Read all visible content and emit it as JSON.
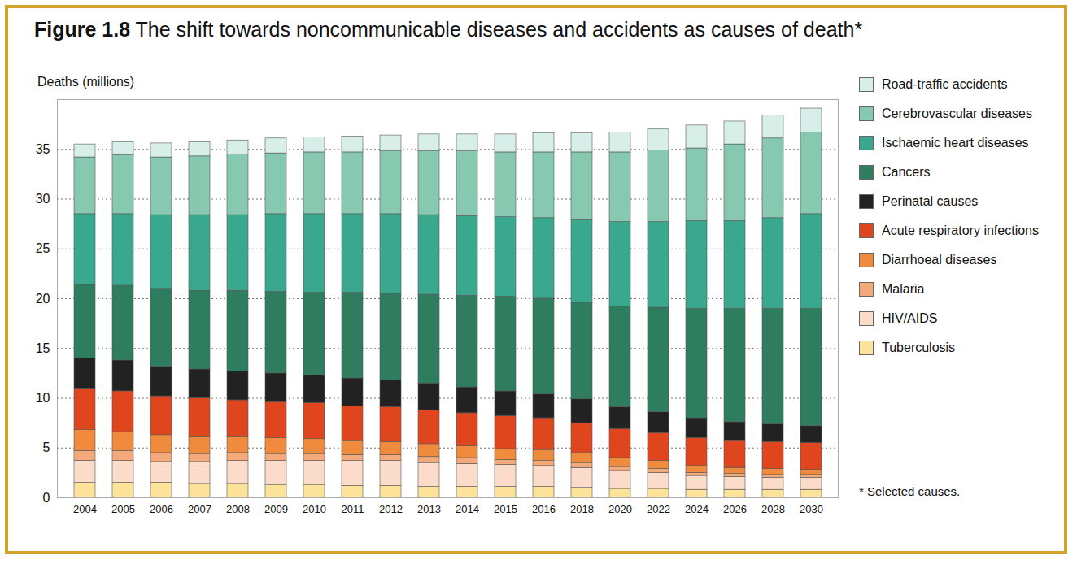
{
  "chart_data": {
    "type": "bar",
    "stacked": true,
    "grid": true,
    "legend": "right",
    "title": "Figure 1.8 The shift towards noncommunicable diseases and accidents as causes of death*",
    "y_label": "Deaths (millions)",
    "caption": "* Selected causes.",
    "categories": [
      "2004",
      "2005",
      "2006",
      "2007",
      "2008",
      "2009",
      "2010",
      "2011",
      "2012",
      "2013",
      "2014",
      "2015",
      "2016",
      "2018",
      "2020",
      "2022",
      "2024",
      "2026",
      "2028",
      "2030"
    ],
    "ylim": [
      0,
      40
    ],
    "yticks": [
      0,
      5,
      10,
      15,
      20,
      25,
      30,
      35
    ],
    "series": [
      {
        "name": "Tuberculosis",
        "color": "#fde39a",
        "values": [
          1.5,
          1.5,
          1.5,
          1.4,
          1.4,
          1.3,
          1.3,
          1.2,
          1.2,
          1.1,
          1.1,
          1.1,
          1.1,
          1.0,
          0.9,
          0.9,
          0.8,
          0.8,
          0.8,
          0.8
        ]
      },
      {
        "name": "HIV/AIDS",
        "color": "#fbdccb",
        "values": [
          2.2,
          2.2,
          2.1,
          2.2,
          2.3,
          2.4,
          2.4,
          2.5,
          2.5,
          2.4,
          2.3,
          2.2,
          2.1,
          2.0,
          1.8,
          1.6,
          1.4,
          1.3,
          1.2,
          1.2
        ]
      },
      {
        "name": "Malaria",
        "color": "#f4a97a",
        "values": [
          1.0,
          1.0,
          0.9,
          0.8,
          0.8,
          0.7,
          0.7,
          0.6,
          0.6,
          0.6,
          0.6,
          0.5,
          0.5,
          0.5,
          0.4,
          0.4,
          0.3,
          0.3,
          0.3,
          0.3
        ]
      },
      {
        "name": "Diarrhoeal diseases",
        "color": "#f08a3c",
        "values": [
          2.1,
          1.9,
          1.8,
          1.7,
          1.6,
          1.6,
          1.5,
          1.4,
          1.3,
          1.3,
          1.2,
          1.1,
          1.1,
          1.0,
          0.9,
          0.8,
          0.7,
          0.6,
          0.6,
          0.5
        ]
      },
      {
        "name": "Acute respiratory infections",
        "color": "#e0461e",
        "values": [
          4.1,
          4.1,
          3.9,
          3.9,
          3.7,
          3.6,
          3.6,
          3.5,
          3.5,
          3.4,
          3.3,
          3.3,
          3.2,
          3.0,
          2.9,
          2.8,
          2.8,
          2.7,
          2.7,
          2.7
        ]
      },
      {
        "name": "Perinatal causes",
        "color": "#222222",
        "values": [
          3.1,
          3.1,
          3.0,
          2.9,
          2.9,
          2.9,
          2.8,
          2.8,
          2.7,
          2.7,
          2.6,
          2.5,
          2.4,
          2.4,
          2.2,
          2.1,
          2.0,
          1.9,
          1.8,
          1.7
        ]
      },
      {
        "name": "Cancers",
        "color": "#2e7d5f",
        "values": [
          7.4,
          7.5,
          7.8,
          7.9,
          8.1,
          8.2,
          8.3,
          8.6,
          8.7,
          8.9,
          9.2,
          9.5,
          9.6,
          9.7,
          10.1,
          10.5,
          11.0,
          11.4,
          11.6,
          11.8
        ]
      },
      {
        "name": "Ischaemic heart diseases",
        "color": "#3aa88e",
        "values": [
          7.1,
          7.2,
          7.4,
          7.6,
          7.6,
          7.8,
          7.9,
          7.9,
          8.0,
          8.0,
          8.0,
          8.0,
          8.1,
          8.3,
          8.5,
          8.6,
          8.8,
          8.8,
          9.1,
          9.5
        ]
      },
      {
        "name": "Cerebrovascular diseases",
        "color": "#86c9b0",
        "values": [
          5.7,
          5.9,
          5.8,
          5.9,
          6.1,
          6.1,
          6.2,
          6.2,
          6.3,
          6.4,
          6.5,
          6.5,
          6.6,
          6.8,
          7.0,
          7.2,
          7.3,
          7.7,
          8.0,
          8.2
        ]
      },
      {
        "name": "Road-traffic accidents",
        "color": "#d7efe8",
        "values": [
          1.3,
          1.3,
          1.4,
          1.4,
          1.4,
          1.5,
          1.5,
          1.6,
          1.6,
          1.7,
          1.7,
          1.8,
          1.9,
          1.9,
          2.0,
          2.1,
          2.3,
          2.3,
          2.3,
          2.4
        ]
      }
    ]
  }
}
